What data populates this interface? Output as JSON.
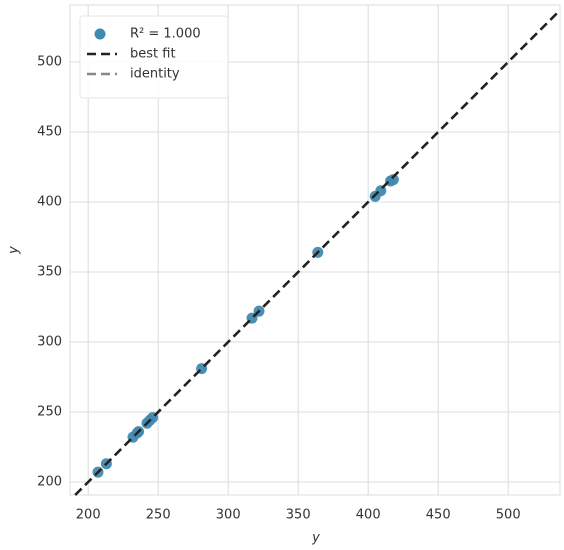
{
  "chart_data": {
    "type": "scatter",
    "x_label": "y",
    "y_label": "y",
    "xlim": [
      187,
      537
    ],
    "ylim": [
      190.7,
      540.7
    ],
    "xticks": [
      200,
      250,
      300,
      350,
      400,
      450,
      500
    ],
    "yticks": [
      200,
      250,
      300,
      350,
      400,
      450,
      500
    ],
    "grid": true,
    "legend": "upper left",
    "series": [
      {
        "name": "R² = 1.000",
        "color": "#3f8ab0",
        "x": [
          207,
          213,
          232,
          235,
          236,
          242,
          244,
          246,
          281,
          317,
          322,
          364,
          405,
          409,
          416,
          418
        ],
        "values": [
          207,
          213,
          232,
          235,
          236,
          242,
          244,
          246,
          281,
          317,
          322,
          364,
          404,
          408,
          415,
          416
        ]
      }
    ],
    "lines": [
      {
        "name": "best fit",
        "color": "#222222"
      },
      {
        "name": "identity",
        "color": "#888888"
      }
    ]
  }
}
